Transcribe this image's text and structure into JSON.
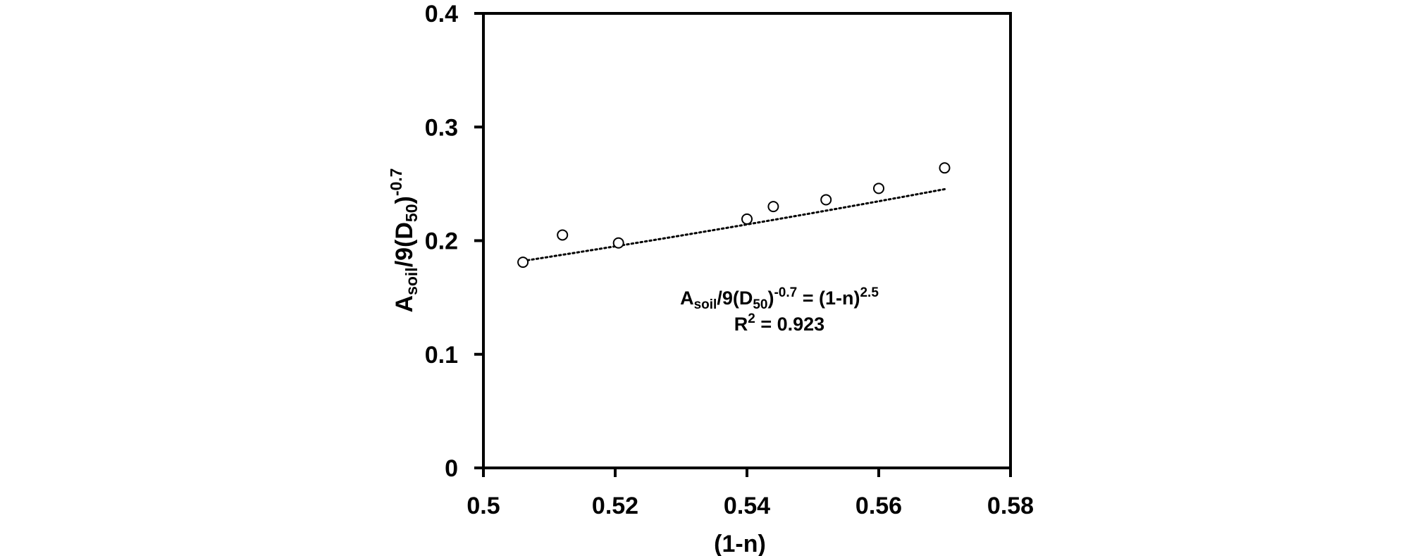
{
  "chart_data": {
    "type": "scatter",
    "x_label": {
      "text": "(1-n)"
    },
    "y_label": {
      "base": "A",
      "sub1": "soil",
      "mid": "/9(D",
      "sub2": "50",
      "close": ")",
      "sup": "-0.7"
    },
    "xlim": [
      0.5,
      0.58
    ],
    "ylim": [
      0,
      0.4
    ],
    "x_ticks": [
      0.5,
      0.52,
      0.54,
      0.56,
      0.58
    ],
    "x_tick_labels": [
      "0.5",
      "0.52",
      "0.54",
      "0.56",
      "0.58"
    ],
    "y_ticks": [
      0,
      0.1,
      0.2,
      0.3,
      0.4
    ],
    "y_tick_labels": [
      "0",
      "0.1",
      "0.2",
      "0.3",
      "0.4"
    ],
    "grid": false,
    "points": [
      {
        "x": 0.506,
        "y": 0.181
      },
      {
        "x": 0.512,
        "y": 0.205
      },
      {
        "x": 0.5205,
        "y": 0.198
      },
      {
        "x": 0.54,
        "y": 0.219
      },
      {
        "x": 0.544,
        "y": 0.23
      },
      {
        "x": 0.552,
        "y": 0.236
      },
      {
        "x": 0.56,
        "y": 0.246
      },
      {
        "x": 0.57,
        "y": 0.264
      }
    ],
    "trendline": {
      "style": "dotted",
      "x_start": 0.506,
      "x_end": 0.57,
      "exponent": 2.5
    },
    "annotation": {
      "eq_base": "A",
      "eq_sub1": "soil",
      "eq_mid": "/9(D",
      "eq_sub2": "50",
      "eq_close": ")",
      "eq_sup1": "-0.7",
      "eq_rhs": " = (1-n)",
      "eq_sup2": "2.5",
      "r2_base": "R",
      "r2_sup": "2",
      "r2_rest": " = 0.923"
    }
  }
}
